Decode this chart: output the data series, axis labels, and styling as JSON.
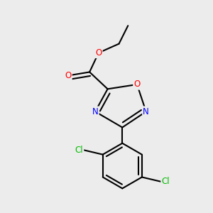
{
  "bg_color": "#ececec",
  "bond_color": "#000000",
  "bond_width": 1.5,
  "dbo": 0.035,
  "atom_colors": {
    "O": "#ff0000",
    "N": "#0000ff",
    "Cl": "#00bb00",
    "C": "#000000"
  },
  "font_size_atom": 8.5
}
